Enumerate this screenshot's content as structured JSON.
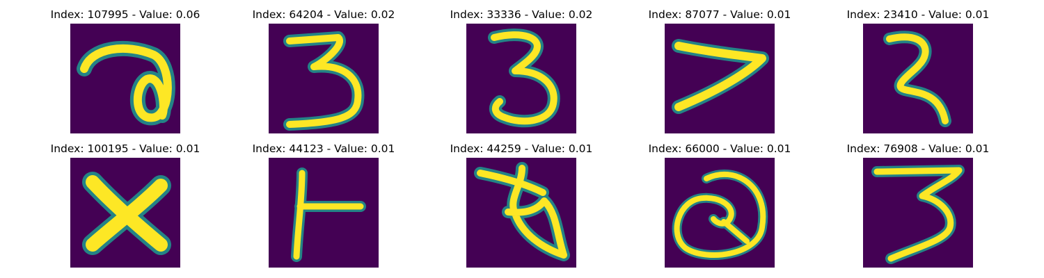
{
  "colors": {
    "background": "#ffffff",
    "image_background": "#440154",
    "stroke_edge": "#21918c",
    "stroke_core": "#fde725",
    "text": "#000000"
  },
  "panels": [
    {
      "index_label": "Index: 107995 - Value: 0.06",
      "depicts": "handwritten glyph resembling a looped a"
    },
    {
      "index_label": "Index: 64204 - Value: 0.02",
      "depicts": "handwritten digit 3"
    },
    {
      "index_label": "Index: 33336 - Value: 0.02",
      "depicts": "handwritten digit 3"
    },
    {
      "index_label": "Index: 87077 - Value: 0.01",
      "depicts": "handwritten digit 7"
    },
    {
      "index_label": "Index: 23410 - Value: 0.01",
      "depicts": "handwritten digit 2"
    },
    {
      "index_label": "Index: 100195 - Value: 0.01",
      "depicts": "handwritten letter X"
    },
    {
      "index_label": "Index: 44123 - Value: 0.01",
      "depicts": "handwritten T-like glyph"
    },
    {
      "index_label": "Index: 44259 - Value: 0.01",
      "depicts": "handwritten irregular glyph"
    },
    {
      "index_label": "Index: 66000 - Value: 0.01",
      "depicts": "handwritten looped Q-like glyph"
    },
    {
      "index_label": "Index: 76908 - Value: 0.01",
      "depicts": "handwritten digit 3"
    }
  ]
}
